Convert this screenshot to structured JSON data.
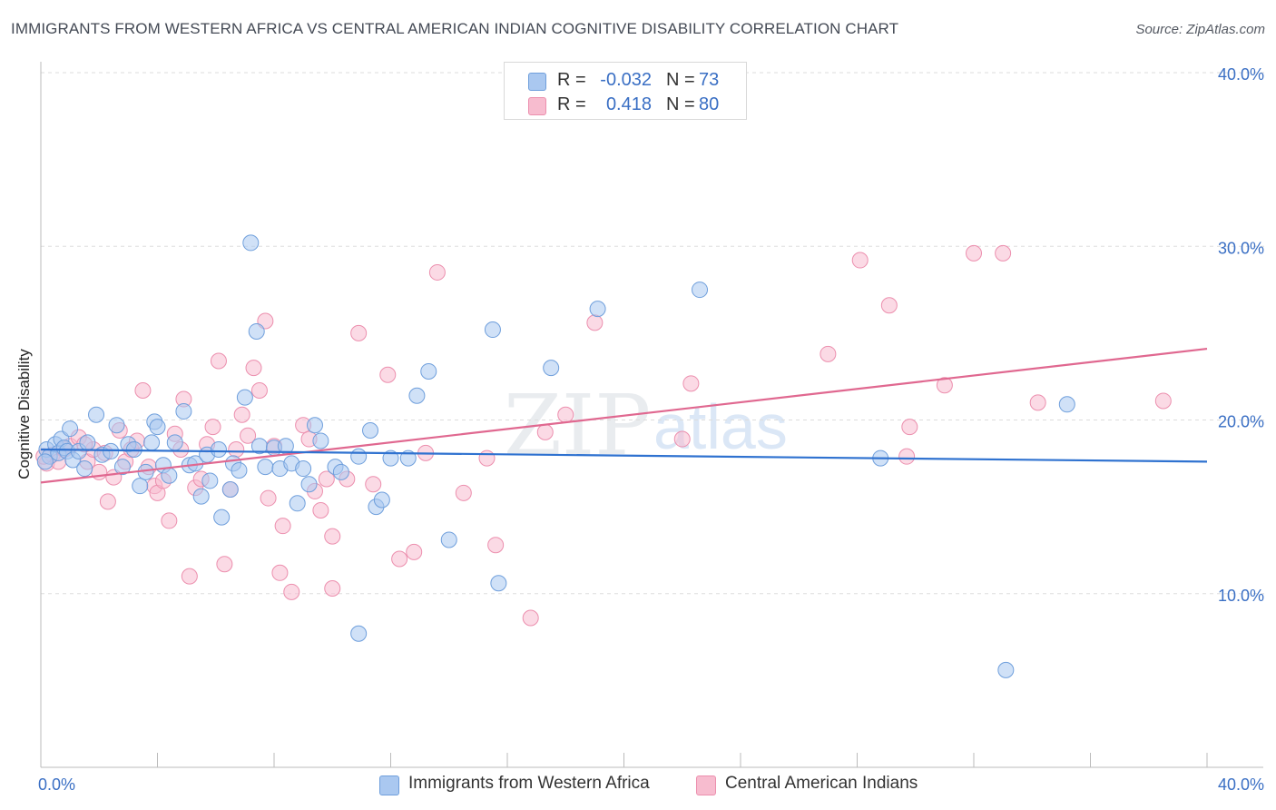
{
  "title": "IMMIGRANTS FROM WESTERN AFRICA VS CENTRAL AMERICAN INDIAN COGNITIVE DISABILITY CORRELATION CHART",
  "source": "Source: ZipAtlas.com",
  "watermark": {
    "zip": "ZIP",
    "atlas": "atlas"
  },
  "legend_top": {
    "rows": [
      {
        "r_label": "R =",
        "r_value": "-0.032",
        "n_label": "N =",
        "n_value": "73"
      },
      {
        "r_label": "R =",
        "r_value": "0.418",
        "n_label": "N =",
        "n_value": "80"
      }
    ]
  },
  "legend_bottom": {
    "items": [
      {
        "label": "Immigrants from Western Africa"
      },
      {
        "label": "Central American Indians"
      }
    ]
  },
  "colors": {
    "blue_fill": "#aac8f0",
    "blue_stroke": "#6f9fdc",
    "blue_line": "#2f72d0",
    "pink_fill": "#f7bccf",
    "pink_stroke": "#ec8fae",
    "pink_line": "#e06890",
    "axis_text": "#3a6fc4",
    "grid": "#dddddd"
  },
  "chart_data": {
    "type": "scatter",
    "title": "IMMIGRANTS FROM WESTERN AFRICA VS CENTRAL AMERICAN INDIAN COGNITIVE DISABILITY CORRELATION CHART",
    "xlabel": "",
    "ylabel": "Cognitive Disability",
    "xlim": [
      0,
      40
    ],
    "ylim": [
      0,
      40
    ],
    "x_tick_labels": [
      "0.0%",
      "40.0%"
    ],
    "y_ticks": [
      10,
      20,
      30,
      40
    ],
    "y_tick_labels": [
      "10.0%",
      "20.0%",
      "30.0%",
      "40.0%"
    ],
    "grid": true,
    "series": [
      {
        "name": "Immigrants from Western Africa",
        "color": "blue",
        "trend": {
          "x": [
            0,
            40
          ],
          "y": [
            18.3,
            17.6
          ]
        },
        "points": [
          [
            0.2,
            18.3
          ],
          [
            0.3,
            17.9
          ],
          [
            0.5,
            18.6
          ],
          [
            0.6,
            18.1
          ],
          [
            0.7,
            18.9
          ],
          [
            0.8,
            18.4
          ],
          [
            0.9,
            18.2
          ],
          [
            1.0,
            19.5
          ],
          [
            1.1,
            17.7
          ],
          [
            1.3,
            18.2
          ],
          [
            1.5,
            17.2
          ],
          [
            1.6,
            18.7
          ],
          [
            1.9,
            20.3
          ],
          [
            2.1,
            18.0
          ],
          [
            2.4,
            18.2
          ],
          [
            2.6,
            19.7
          ],
          [
            2.8,
            17.3
          ],
          [
            3.0,
            18.6
          ],
          [
            3.2,
            18.3
          ],
          [
            3.4,
            16.2
          ],
          [
            3.6,
            17.0
          ],
          [
            3.8,
            18.7
          ],
          [
            3.9,
            19.9
          ],
          [
            4.0,
            19.6
          ],
          [
            4.2,
            17.4
          ],
          [
            4.4,
            16.8
          ],
          [
            4.6,
            18.7
          ],
          [
            4.9,
            20.5
          ],
          [
            5.1,
            17.4
          ],
          [
            5.3,
            17.5
          ],
          [
            5.5,
            15.6
          ],
          [
            5.7,
            18.0
          ],
          [
            5.8,
            16.5
          ],
          [
            6.1,
            18.3
          ],
          [
            6.2,
            14.4
          ],
          [
            6.5,
            16.0
          ],
          [
            6.6,
            17.5
          ],
          [
            6.8,
            17.1
          ],
          [
            7.0,
            21.3
          ],
          [
            7.2,
            30.2
          ],
          [
            7.4,
            25.1
          ],
          [
            7.5,
            18.5
          ],
          [
            7.7,
            17.3
          ],
          [
            8.0,
            18.4
          ],
          [
            8.2,
            17.2
          ],
          [
            8.4,
            18.5
          ],
          [
            8.6,
            17.5
          ],
          [
            8.8,
            15.2
          ],
          [
            9.0,
            17.2
          ],
          [
            9.2,
            16.3
          ],
          [
            9.4,
            19.7
          ],
          [
            9.6,
            18.8
          ],
          [
            10.1,
            17.3
          ],
          [
            10.3,
            17.0
          ],
          [
            10.9,
            7.7
          ],
          [
            10.9,
            17.9
          ],
          [
            11.3,
            19.4
          ],
          [
            11.5,
            15.0
          ],
          [
            11.7,
            15.4
          ],
          [
            12.0,
            17.8
          ],
          [
            12.6,
            17.8
          ],
          [
            12.9,
            21.4
          ],
          [
            13.3,
            22.8
          ],
          [
            14.0,
            13.1
          ],
          [
            15.5,
            25.2
          ],
          [
            15.7,
            10.6
          ],
          [
            17.5,
            23.0
          ],
          [
            19.1,
            26.4
          ],
          [
            22.6,
            27.5
          ],
          [
            28.8,
            17.8
          ],
          [
            33.1,
            5.6
          ],
          [
            35.2,
            20.9
          ],
          [
            0.15,
            17.6
          ]
        ]
      },
      {
        "name": "Central American Indians",
        "color": "pink",
        "trend": {
          "x": [
            0,
            40
          ],
          "y": [
            16.4,
            24.1
          ]
        },
        "points": [
          [
            0.2,
            17.5
          ],
          [
            0.4,
            18.0
          ],
          [
            0.6,
            17.6
          ],
          [
            0.8,
            18.3
          ],
          [
            1.0,
            18.5
          ],
          [
            1.3,
            19.0
          ],
          [
            1.6,
            17.6
          ],
          [
            1.8,
            18.3
          ],
          [
            2.0,
            17.0
          ],
          [
            2.3,
            15.3
          ],
          [
            2.5,
            16.7
          ],
          [
            2.7,
            19.4
          ],
          [
            2.9,
            17.6
          ],
          [
            3.1,
            18.3
          ],
          [
            3.3,
            18.8
          ],
          [
            3.5,
            21.7
          ],
          [
            3.7,
            17.3
          ],
          [
            3.9,
            16.2
          ],
          [
            4.0,
            15.8
          ],
          [
            4.2,
            16.5
          ],
          [
            4.4,
            14.2
          ],
          [
            4.6,
            19.2
          ],
          [
            4.8,
            18.3
          ],
          [
            4.9,
            21.2
          ],
          [
            5.1,
            11.0
          ],
          [
            5.3,
            16.1
          ],
          [
            5.5,
            16.6
          ],
          [
            5.7,
            18.6
          ],
          [
            5.9,
            19.6
          ],
          [
            6.1,
            23.4
          ],
          [
            6.3,
            11.7
          ],
          [
            6.5,
            16.0
          ],
          [
            6.7,
            18.3
          ],
          [
            6.9,
            20.3
          ],
          [
            7.1,
            19.1
          ],
          [
            7.3,
            23.0
          ],
          [
            7.5,
            21.7
          ],
          [
            7.7,
            25.7
          ],
          [
            7.8,
            15.5
          ],
          [
            8.0,
            18.5
          ],
          [
            8.2,
            11.2
          ],
          [
            8.3,
            13.9
          ],
          [
            8.6,
            10.1
          ],
          [
            9.0,
            19.7
          ],
          [
            9.2,
            18.9
          ],
          [
            9.4,
            15.9
          ],
          [
            9.6,
            14.8
          ],
          [
            9.8,
            16.6
          ],
          [
            10.0,
            13.3
          ],
          [
            10.0,
            10.3
          ],
          [
            10.5,
            16.6
          ],
          [
            10.9,
            25.0
          ],
          [
            11.4,
            16.3
          ],
          [
            11.9,
            22.6
          ],
          [
            12.3,
            12.0
          ],
          [
            12.8,
            12.4
          ],
          [
            13.2,
            18.1
          ],
          [
            13.6,
            28.5
          ],
          [
            14.5,
            15.8
          ],
          [
            15.3,
            17.8
          ],
          [
            15.6,
            12.8
          ],
          [
            16.8,
            8.6
          ],
          [
            17.3,
            19.3
          ],
          [
            18.0,
            20.3
          ],
          [
            19.0,
            25.6
          ],
          [
            22.0,
            18.9
          ],
          [
            22.3,
            22.1
          ],
          [
            27.0,
            23.8
          ],
          [
            28.1,
            29.2
          ],
          [
            29.1,
            26.6
          ],
          [
            29.8,
            19.6
          ],
          [
            29.7,
            17.9
          ],
          [
            31.0,
            22.0
          ],
          [
            32.0,
            29.6
          ],
          [
            33.0,
            29.6
          ],
          [
            34.2,
            21.0
          ],
          [
            38.5,
            21.1
          ],
          [
            0.1,
            17.9
          ],
          [
            1.5,
            18.6
          ],
          [
            2.2,
            18.1
          ]
        ]
      }
    ]
  }
}
